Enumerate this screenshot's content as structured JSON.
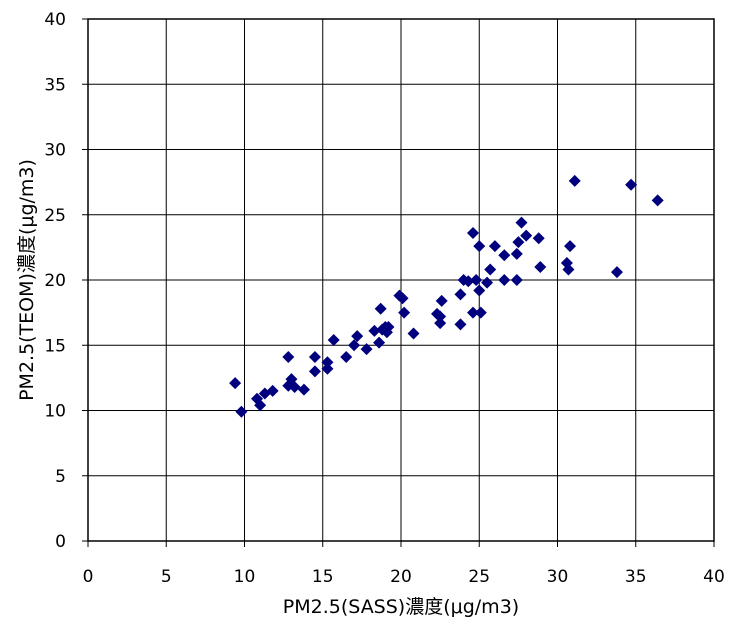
{
  "chart_data": {
    "type": "scatter",
    "title": "",
    "xlabel": "PM2.5(SASS)濃度(μg/m3)",
    "ylabel": "PM2.5(TEOM)濃度(μg/m3)",
    "xlim": [
      0,
      40
    ],
    "ylim": [
      0,
      40
    ],
    "x_ticks": [
      0,
      5,
      10,
      15,
      20,
      25,
      30,
      35,
      40
    ],
    "y_ticks": [
      0,
      5,
      10,
      15,
      20,
      25,
      30,
      35,
      40
    ],
    "grid": true,
    "marker": "diamond",
    "marker_color": "#00007F",
    "series": [
      {
        "points": [
          [
            9.4,
            12.1
          ],
          [
            9.8,
            9.9
          ],
          [
            10.8,
            10.9
          ],
          [
            11.0,
            10.4
          ],
          [
            11.3,
            11.3
          ],
          [
            11.8,
            11.5
          ],
          [
            12.8,
            14.1
          ],
          [
            12.8,
            11.9
          ],
          [
            13.0,
            12.4
          ],
          [
            13.2,
            11.8
          ],
          [
            13.8,
            11.6
          ],
          [
            14.5,
            14.1
          ],
          [
            14.5,
            13.0
          ],
          [
            15.3,
            13.7
          ],
          [
            15.3,
            13.2
          ],
          [
            15.7,
            15.4
          ],
          [
            16.5,
            14.1
          ],
          [
            17.0,
            15.0
          ],
          [
            17.2,
            15.7
          ],
          [
            17.8,
            14.7
          ],
          [
            18.3,
            16.1
          ],
          [
            18.6,
            15.2
          ],
          [
            18.7,
            17.8
          ],
          [
            18.8,
            16.2
          ],
          [
            19.0,
            16.4
          ],
          [
            19.1,
            16.0
          ],
          [
            19.2,
            16.4
          ],
          [
            19.9,
            18.8
          ],
          [
            20.1,
            18.6
          ],
          [
            20.2,
            17.5
          ],
          [
            20.8,
            15.9
          ],
          [
            22.3,
            17.4
          ],
          [
            22.5,
            16.7
          ],
          [
            22.5,
            17.2
          ],
          [
            22.6,
            18.4
          ],
          [
            23.8,
            16.6
          ],
          [
            23.8,
            18.9
          ],
          [
            24.0,
            20.0
          ],
          [
            24.3,
            19.9
          ],
          [
            24.6,
            17.5
          ],
          [
            24.6,
            23.6
          ],
          [
            24.8,
            20.0
          ],
          [
            25.0,
            22.6
          ],
          [
            25.0,
            19.2
          ],
          [
            25.1,
            17.5
          ],
          [
            25.5,
            19.8
          ],
          [
            25.7,
            20.8
          ],
          [
            26.0,
            22.6
          ],
          [
            26.6,
            21.9
          ],
          [
            26.6,
            20.0
          ],
          [
            27.4,
            22.0
          ],
          [
            27.4,
            20.0
          ],
          [
            27.5,
            22.9
          ],
          [
            27.7,
            24.4
          ],
          [
            28.0,
            23.4
          ],
          [
            28.8,
            23.2
          ],
          [
            28.9,
            21.0
          ],
          [
            30.6,
            21.3
          ],
          [
            30.7,
            20.8
          ],
          [
            30.8,
            22.6
          ],
          [
            31.1,
            27.6
          ],
          [
            33.8,
            20.6
          ],
          [
            34.7,
            27.3
          ],
          [
            36.4,
            26.1
          ]
        ]
      }
    ]
  }
}
